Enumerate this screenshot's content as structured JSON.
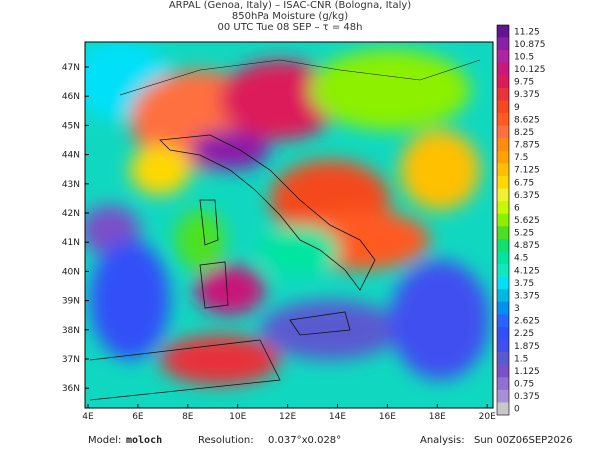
{
  "header": {
    "line1": "ARPAL (Genoa, Italy)  –  ISAC-CNR (Bologna, Italy)",
    "line2": "850hPa Moisture (g/kg)",
    "line3": "00 UTC Tue 08 SEP  –  τ = 48h"
  },
  "latitudes": [
    "47N",
    "46N",
    "45N",
    "44N",
    "43N",
    "42N",
    "41N",
    "40N",
    "39N",
    "38N",
    "37N",
    "36N"
  ],
  "longitudes": [
    "4E",
    "6E",
    "8E",
    "10E",
    "12E",
    "14E",
    "16E",
    "18E",
    "20E"
  ],
  "colorbar": [
    {
      "value": 11.25,
      "color": "#5e1790"
    },
    {
      "value": 10.875,
      "color": "#8a1fa8"
    },
    {
      "value": 10.5,
      "color": "#b0249f"
    },
    {
      "value": 10.125,
      "color": "#c8187a"
    },
    {
      "value": 9.75,
      "color": "#dc1b5a"
    },
    {
      "value": 9.375,
      "color": "#e8333a"
    },
    {
      "value": 9,
      "color": "#f4481e"
    },
    {
      "value": 8.625,
      "color": "#ff5a22"
    },
    {
      "value": 8.25,
      "color": "#ff7040"
    },
    {
      "value": 7.875,
      "color": "#ff8c10"
    },
    {
      "value": 7.5,
      "color": "#ffa200"
    },
    {
      "value": 7.125,
      "color": "#ffc000"
    },
    {
      "value": 6.75,
      "color": "#ffd800"
    },
    {
      "value": 6.375,
      "color": "#eef030"
    },
    {
      "value": 6,
      "color": "#c6f800"
    },
    {
      "value": 5.625,
      "color": "#8cf000"
    },
    {
      "value": 5.25,
      "color": "#4ee020"
    },
    {
      "value": 4.875,
      "color": "#10e070"
    },
    {
      "value": 4.5,
      "color": "#00e5a0"
    },
    {
      "value": 4.125,
      "color": "#10e8c0"
    },
    {
      "value": 3.75,
      "color": "#00e0f8"
    },
    {
      "value": 3.375,
      "color": "#00b8e0"
    },
    {
      "value": 3,
      "color": "#0090f0"
    },
    {
      "value": 2.625,
      "color": "#2a64ff"
    },
    {
      "value": 2.25,
      "color": "#3050f8"
    },
    {
      "value": 1.875,
      "color": "#4050f0"
    },
    {
      "value": 1.5,
      "color": "#5a5ad0"
    },
    {
      "value": 1.125,
      "color": "#7a50c8"
    },
    {
      "value": 0.75,
      "color": "#9070d0"
    },
    {
      "value": 0.375,
      "color": "#a890d8"
    },
    {
      "value": 0,
      "color": "#c8c8c8"
    }
  ],
  "footer": {
    "model_label": "Model:",
    "model": "moloch",
    "resolution_label": "Resolution:",
    "resolution": "0.037°x0.028°",
    "analysis_label": "Analysis:",
    "analysis": "Sun 00Z06SEP2026"
  }
}
